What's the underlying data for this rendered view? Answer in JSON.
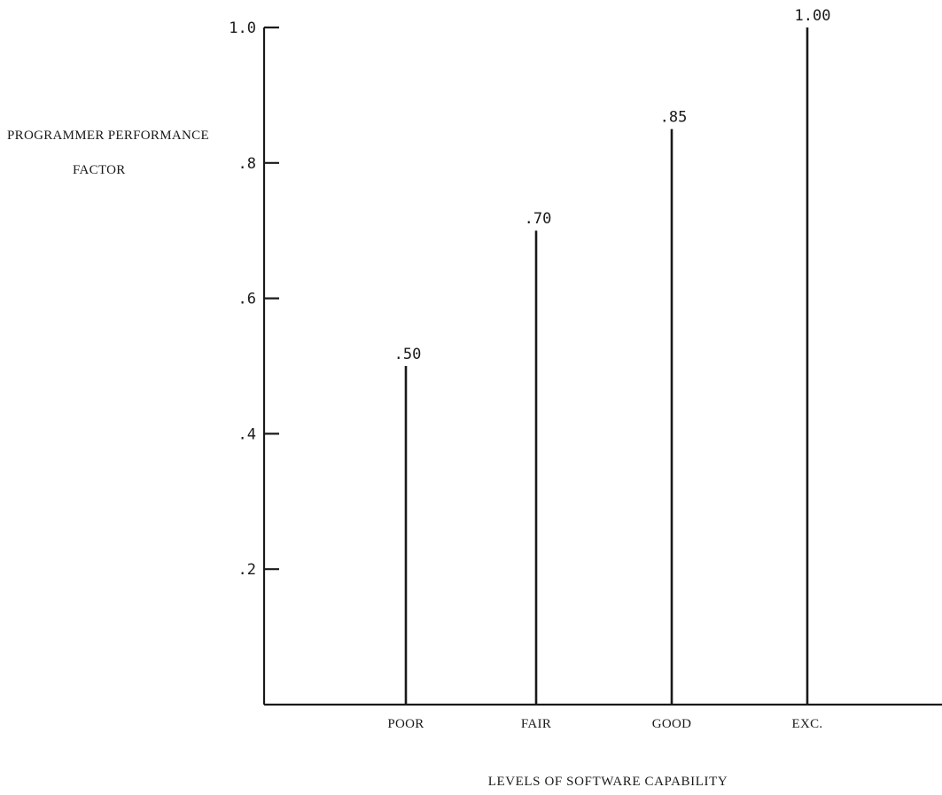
{
  "chart_data": {
    "type": "bar",
    "title": "",
    "ylabel_lines": [
      "PROGRAMMER PERFORMANCE",
      "FACTOR"
    ],
    "xlabel": "LEVELS OF SOFTWARE CAPABILITY",
    "categories": [
      "POOR",
      "FAIR",
      "GOOD",
      "EXC."
    ],
    "values": [
      0.5,
      0.7,
      0.85,
      1.0
    ],
    "data_labels": [
      ".50",
      ".70",
      ".85",
      "1.00"
    ],
    "ylim": [
      0,
      1.0
    ],
    "yticks": [
      0.2,
      0.4,
      0.6,
      0.8,
      1.0
    ],
    "ytick_labels": [
      ".2",
      ".4",
      ".6",
      ".8",
      "1.0"
    ],
    "grid": false,
    "legend": "none"
  },
  "colors": {
    "ink": "#1a1a1a",
    "background": "#ffffff"
  }
}
